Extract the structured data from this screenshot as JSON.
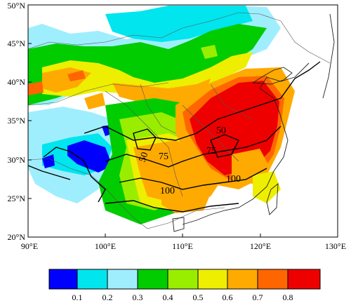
{
  "map": {
    "lat_labels": [
      "20°N",
      "25°N",
      "30°N",
      "35°N",
      "40°N",
      "45°N",
      "50°N"
    ],
    "lon_labels": [
      "90°E",
      "100°E",
      "110°E",
      "120°E",
      "130°E"
    ],
    "contour_labels": [
      "50",
      "50",
      "75",
      "75",
      "100",
      "100"
    ],
    "extent": {
      "lon": [
        90,
        130
      ],
      "lat": [
        20,
        50
      ]
    }
  },
  "colorbar": {
    "ticks": [
      "0.1",
      "0.2",
      "0.3",
      "0.4",
      "0.5",
      "0.6",
      "0.7",
      "0.8"
    ],
    "colors": [
      "#0000ff",
      "#00e5ee",
      "#9feefe",
      "#00cc00",
      "#99ee00",
      "#eeee00",
      "#ffaa00",
      "#ff6600",
      "#ee0000"
    ]
  }
}
